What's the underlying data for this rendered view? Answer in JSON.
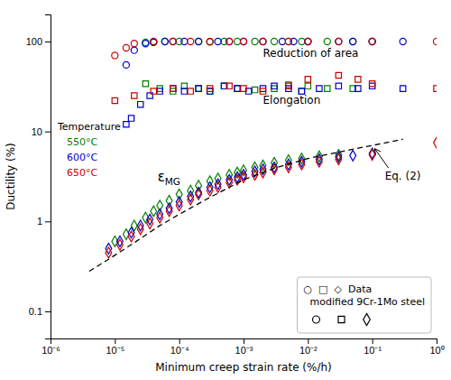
{
  "chart_data": {
    "type": "scatter",
    "x_label": "Minimum creep strain rate (%/h)",
    "y_label": "Ductility (%)",
    "log": true,
    "grid": false,
    "legend": "lower right",
    "legend_title": "○  □  ◇  Data\n  modified 9Cr-1Mo steel",
    "color_legend_title": "Temperature",
    "annotations": [
      "Reduction of area",
      "Elongation",
      "εMG",
      "Eq. (2)"
    ],
    "xlim": [
      1e-06,
      1
    ],
    "xticks": [
      {
        "value": 1e-06,
        "label": "10⁻⁶"
      },
      {
        "value": 1e-05,
        "label": "10⁻⁵"
      },
      {
        "value": 0.0001,
        "label": "10⁻⁴"
      },
      {
        "value": 0.001,
        "label": "10⁻³"
      },
      {
        "value": 0.01,
        "label": "10⁻²"
      },
      {
        "value": 0.1,
        "label": "10⁻¹"
      },
      {
        "value": 1,
        "label": "10⁰"
      }
    ],
    "ylim": [
      0.05,
      200
    ],
    "yticks": [
      0.1,
      1,
      10,
      100
    ],
    "series": [
      {
        "name": "550°C",
        "type": "scatter",
        "color": "#008000",
        "marker": "circle",
        "x": [
          3e-05,
          4e-05,
          6e-05,
          0.0001,
          0.0002,
          0.0003,
          0.0005,
          0.0008,
          0.0015,
          0.003,
          0.005,
          0.008,
          0.01,
          0.02,
          0.05,
          0.1
        ],
        "values": [
          98,
          99,
          100,
          100,
          100,
          99,
          100,
          100,
          100,
          100,
          100,
          100,
          100,
          100,
          100,
          100
        ]
      },
      {
        "name": "600°C",
        "type": "scatter",
        "color": "#0000CC",
        "marker": "circle",
        "x": [
          1.5e-05,
          2e-05,
          3e-05,
          4e-05,
          6e-05,
          8e-05,
          0.00012,
          0.0002,
          0.0004,
          0.0006,
          0.001,
          0.002,
          0.004,
          0.006,
          0.01,
          0.03,
          0.05,
          0.1,
          0.3
        ],
        "values": [
          55,
          80,
          95,
          98,
          100,
          100,
          100,
          100,
          100,
          100,
          100,
          100,
          100,
          100,
          100,
          100,
          100,
          100,
          100
        ]
      },
      {
        "name": "650°C",
        "type": "scatter",
        "color": "#CC0000",
        "marker": "circle",
        "x": [
          1e-05,
          1.5e-05,
          2e-05,
          4e-05,
          8e-05,
          0.00015,
          0.0003,
          0.0006,
          0.001,
          0.002,
          0.005,
          0.01,
          0.03,
          0.1,
          1.0
        ],
        "values": [
          70,
          85,
          95,
          100,
          100,
          100,
          100,
          100,
          100,
          100,
          100,
          100,
          100,
          100,
          100
        ]
      },
      {
        "type": "scatter",
        "color": "#008000",
        "marker": "square",
        "x": [
          3e-05,
          5e-05,
          8e-05,
          0.00012,
          0.0002,
          0.0003,
          0.0005,
          0.0008,
          0.0015,
          0.003,
          0.005,
          0.008,
          0.01,
          0.02,
          0.05
        ],
        "values": [
          34,
          30,
          28,
          32,
          30,
          28,
          32,
          30,
          29,
          30,
          33,
          28,
          32,
          30,
          30
        ]
      },
      {
        "type": "scatter",
        "color": "#0000CC",
        "marker": "square",
        "x": [
          1.5e-05,
          1.8e-05,
          2.5e-05,
          3.5e-05,
          5e-05,
          8e-05,
          0.00012,
          0.0002,
          0.0003,
          0.0005,
          0.0008,
          0.0012,
          0.002,
          0.003,
          0.005,
          0.008,
          0.015,
          0.03,
          0.06,
          0.1,
          0.3
        ],
        "values": [
          12,
          14,
          20,
          25,
          28,
          30,
          28,
          30,
          28,
          32,
          30,
          28,
          30,
          32,
          30,
          28,
          30,
          32,
          30,
          32,
          30
        ]
      },
      {
        "type": "scatter",
        "color": "#CC0000",
        "marker": "square",
        "x": [
          1e-05,
          2e-05,
          4e-05,
          8e-05,
          0.00015,
          0.0003,
          0.0006,
          0.001,
          0.002,
          0.005,
          0.01,
          0.03,
          0.06,
          0.1,
          1.0
        ],
        "values": [
          22,
          25,
          28,
          30,
          28,
          30,
          32,
          30,
          28,
          32,
          38,
          42,
          38,
          34,
          30
        ]
      },
      {
        "type": "scatter",
        "color": "#008000",
        "marker": "diamond",
        "x": [
          1e-05,
          1.5e-05,
          2e-05,
          3e-05,
          4e-05,
          5e-05,
          7e-05,
          0.0001,
          0.00015,
          0.0002,
          0.0003,
          0.0004,
          0.0006,
          0.0008,
          0.001,
          0.0015,
          0.002,
          0.003,
          0.005,
          0.008,
          0.015,
          0.03
        ],
        "values": [
          0.6,
          0.72,
          0.9,
          1.1,
          1.3,
          1.5,
          1.7,
          2.0,
          2.2,
          2.5,
          2.8,
          3.0,
          3.3,
          3.5,
          3.7,
          4.0,
          4.2,
          4.5,
          4.8,
          5.0,
          5.3,
          5.5
        ]
      },
      {
        "type": "scatter",
        "color": "#0000CC",
        "marker": "diamond",
        "x": [
          8e-06,
          1.2e-05,
          1.8e-05,
          2.5e-05,
          3.5e-05,
          5e-05,
          7e-05,
          0.0001,
          0.00015,
          0.0002,
          0.0003,
          0.0004,
          0.0006,
          0.0008,
          0.001,
          0.0015,
          0.002,
          0.003,
          0.005,
          0.008,
          0.015,
          0.03,
          0.05,
          0.1
        ],
        "values": [
          0.5,
          0.6,
          0.75,
          0.9,
          1.05,
          1.2,
          1.4,
          1.65,
          1.9,
          2.1,
          2.4,
          2.6,
          2.9,
          3.1,
          3.3,
          3.6,
          3.8,
          4.0,
          4.3,
          4.6,
          4.9,
          5.2,
          5.4,
          5.7
        ]
      },
      {
        "type": "scatter",
        "color": "#CC0000",
        "marker": "diamond",
        "x": [
          8e-06,
          1.2e-05,
          1.8e-05,
          2.5e-05,
          3.5e-05,
          5e-05,
          7e-05,
          0.0001,
          0.00015,
          0.0002,
          0.0003,
          0.0004,
          0.0006,
          0.0008,
          0.001,
          0.0015,
          0.002,
          0.003,
          0.005,
          0.008,
          0.015,
          0.03,
          0.1,
          1.0
        ],
        "values": [
          0.45,
          0.55,
          0.68,
          0.82,
          0.95,
          1.1,
          1.3,
          1.5,
          1.75,
          2.0,
          2.2,
          2.4,
          2.7,
          2.9,
          3.1,
          3.3,
          3.5,
          3.8,
          4.0,
          4.3,
          4.6,
          4.9,
          5.5,
          7.5
        ]
      },
      {
        "type": "line",
        "color": "#000000",
        "line_style": "dashed",
        "x": [
          4e-06,
          8e-06,
          2e-05,
          5e-05,
          0.0001,
          0.0003,
          0.001,
          0.003,
          0.01,
          0.03,
          0.1,
          0.3
        ],
        "values": [
          0.28,
          0.38,
          0.58,
          0.9,
          1.2,
          1.85,
          2.9,
          3.9,
          5.0,
          5.9,
          7.0,
          8.2
        ]
      }
    ]
  }
}
